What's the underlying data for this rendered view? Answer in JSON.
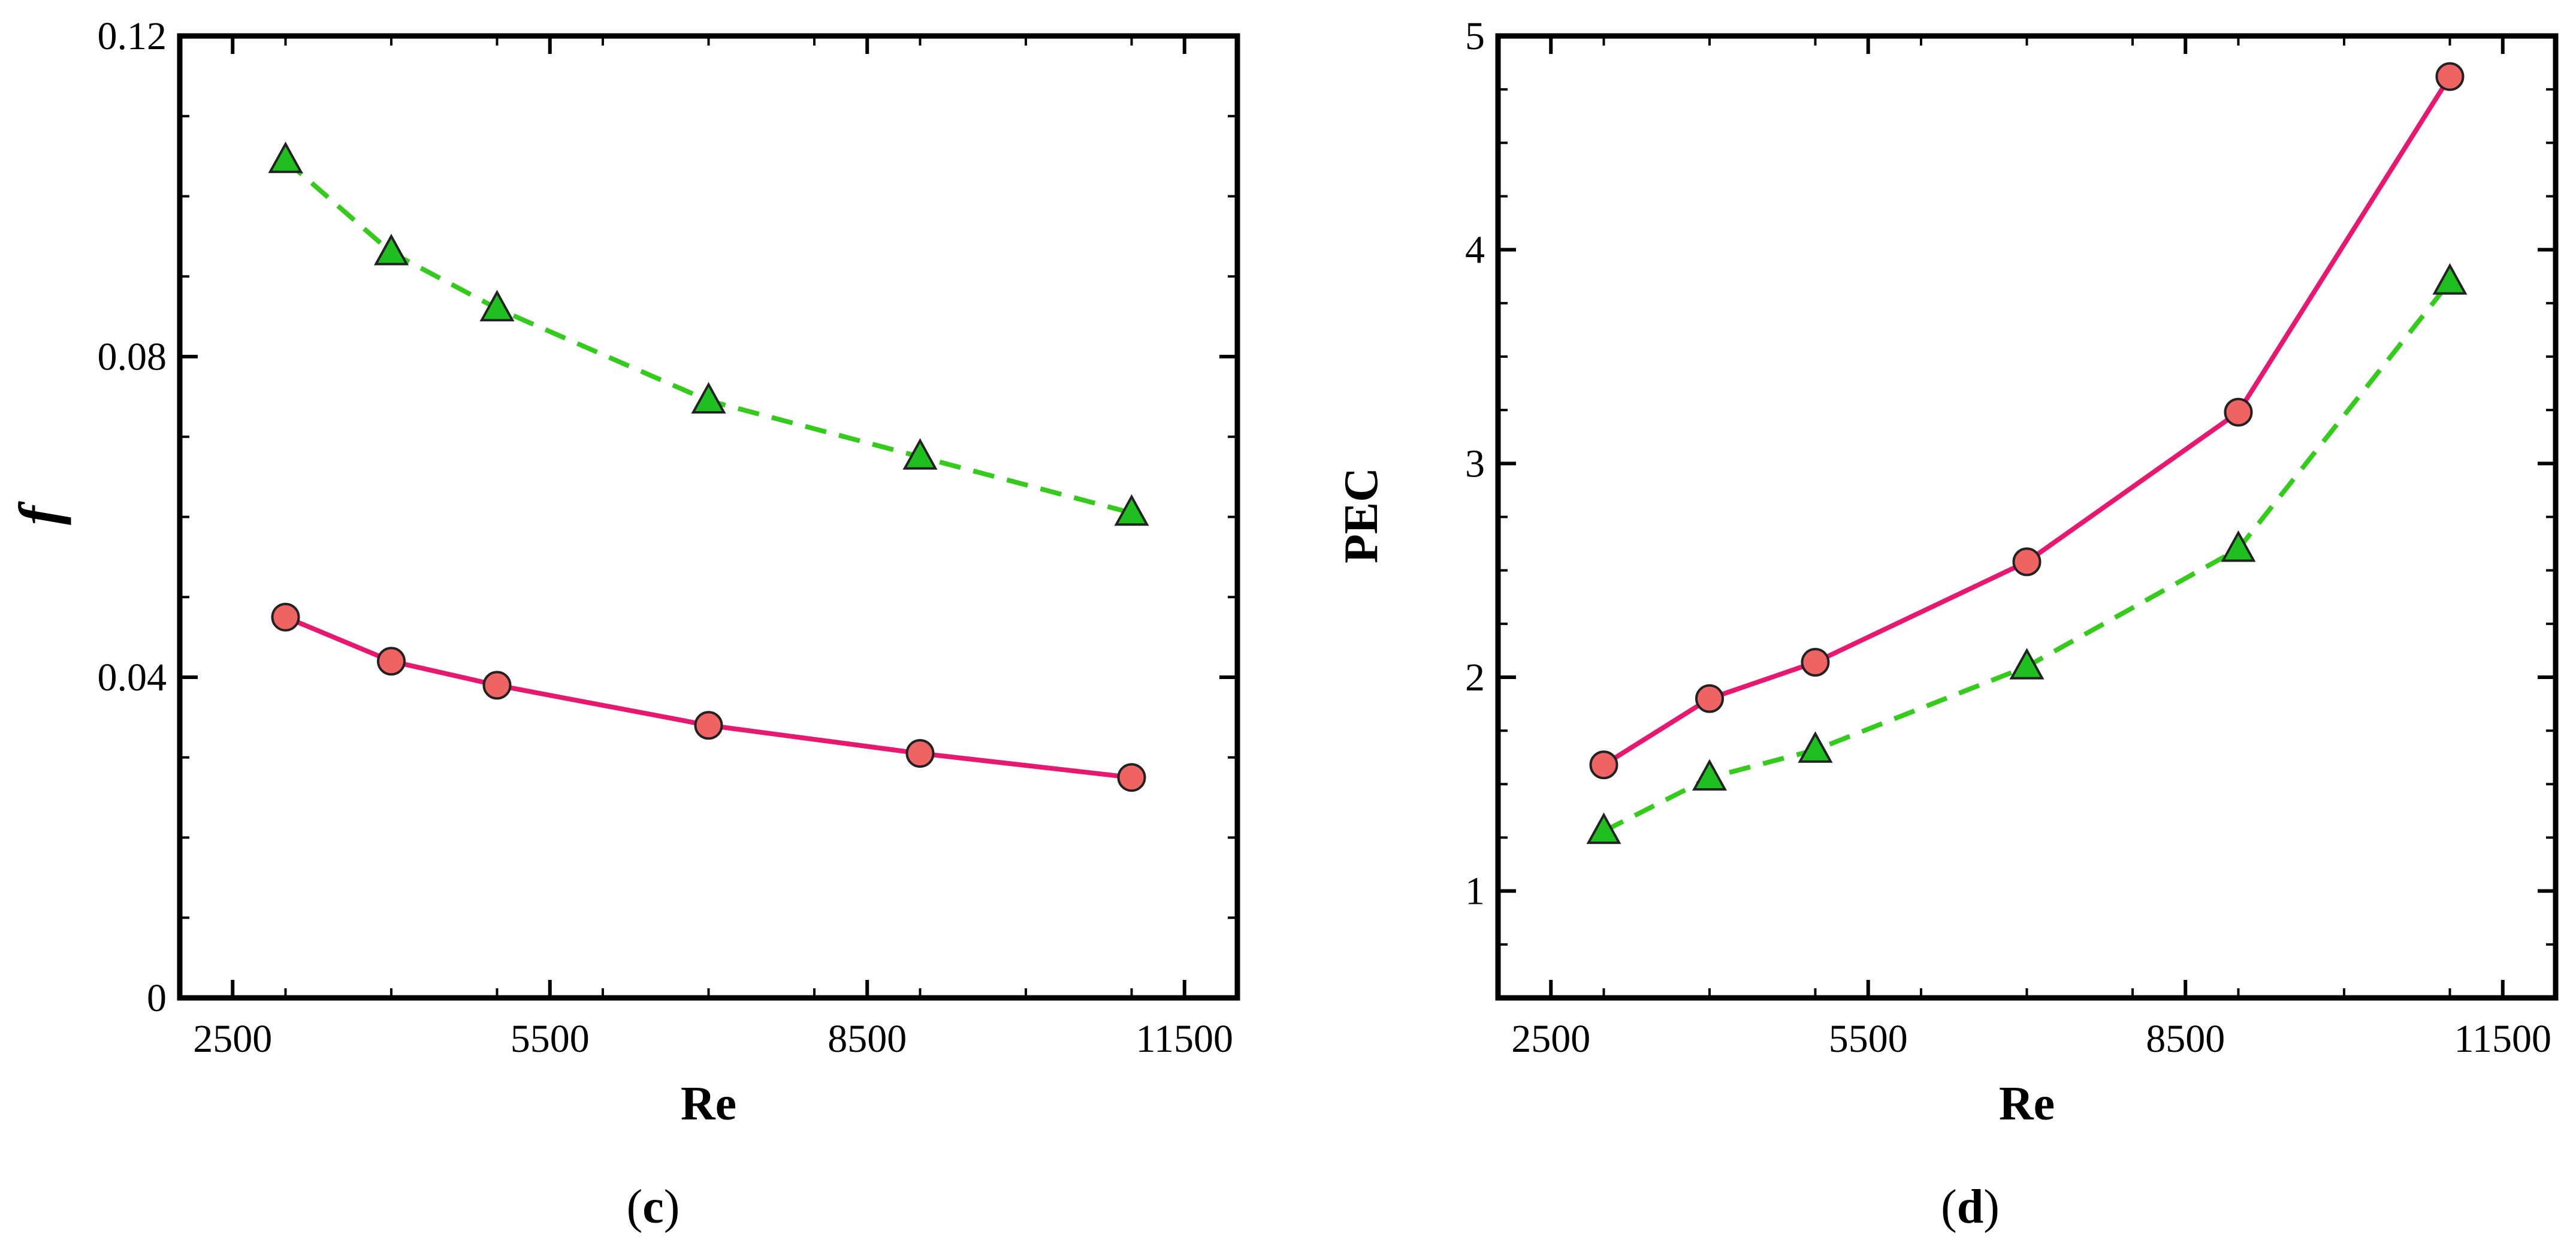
{
  "chart_data": [
    {
      "type": "line",
      "panel_label": {
        "open": "(",
        "letter": "c",
        "close": ")"
      },
      "xlabel": "Re",
      "ylabel": "f",
      "xlim": [
        2000,
        12000
      ],
      "ylim": [
        0,
        0.12
      ],
      "xticks": [
        2500,
        5500,
        8500,
        11500
      ],
      "xtick_labels": [
        "2500",
        "5500",
        "8500",
        "11500"
      ],
      "yticks": [
        0,
        0.04,
        0.08,
        0.12
      ],
      "ytick_labels": [
        "0",
        "0.04",
        "0.08",
        "0.12"
      ],
      "grid": false,
      "series": [
        {
          "name": "circles",
          "color": "#e8176f",
          "marker": "circle",
          "marker_color": "#f06363",
          "line_style": "solid",
          "x": [
            3000,
            4000,
            5000,
            7000,
            9000,
            11000
          ],
          "y": [
            0.0475,
            0.042,
            0.039,
            0.034,
            0.0305,
            0.0275
          ]
        },
        {
          "name": "triangles",
          "color": "#33cc1a",
          "marker": "triangle",
          "marker_color": "#1fbf1f",
          "line_style": "dashed",
          "x": [
            3000,
            4000,
            5000,
            7000,
            9000,
            11000
          ],
          "y": [
            0.1045,
            0.093,
            0.086,
            0.0745,
            0.0675,
            0.0605
          ]
        }
      ]
    },
    {
      "type": "line",
      "panel_label": {
        "open": "(",
        "letter": "d",
        "close": ")"
      },
      "xlabel": "Re",
      "ylabel": "PEC",
      "xlim": [
        2000,
        12000
      ],
      "ylim": [
        0.5,
        5
      ],
      "xticks": [
        2500,
        5500,
        8500,
        11500
      ],
      "xtick_labels": [
        "2500",
        "5500",
        "8500",
        "11500"
      ],
      "yticks": [
        1,
        2,
        3,
        4,
        5
      ],
      "ytick_labels": [
        "1",
        "2",
        "3",
        "4",
        "5"
      ],
      "grid": false,
      "series": [
        {
          "name": "circles",
          "color": "#e8176f",
          "marker": "circle",
          "marker_color": "#f06363",
          "line_style": "solid",
          "x": [
            3000,
            4000,
            5000,
            7000,
            9000,
            11000
          ],
          "y": [
            1.59,
            1.9,
            2.07,
            2.54,
            3.24,
            4.81
          ]
        },
        {
          "name": "triangles",
          "color": "#33cc1a",
          "marker": "triangle",
          "marker_color": "#1fbf1f",
          "line_style": "dashed",
          "x": [
            3000,
            4000,
            5000,
            7000,
            9000,
            11000
          ],
          "y": [
            1.28,
            1.53,
            1.66,
            2.05,
            2.6,
            3.85
          ]
        }
      ]
    }
  ]
}
